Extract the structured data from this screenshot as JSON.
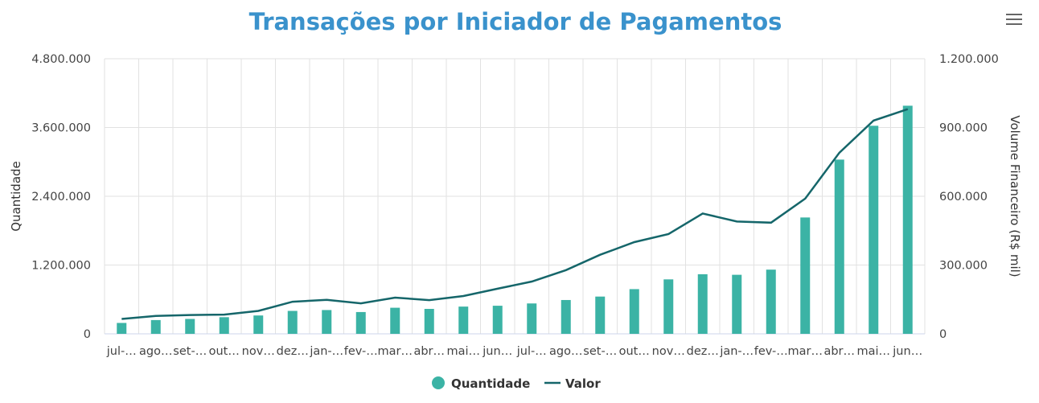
{
  "title": "Transações por Iniciador de Pagamentos",
  "menu_icon": "hamburger-menu-icon",
  "colors": {
    "title": "#3a92cc",
    "bars": "#3bb3a5",
    "line": "#15666a",
    "grid": "#e2e2e2"
  },
  "chart_data": {
    "type": "bar",
    "categories": [
      "jul-…",
      "ago…",
      "set-…",
      "out…",
      "nov…",
      "dez…",
      "jan-…",
      "fev-…",
      "mar…",
      "abr…",
      "mai…",
      "jun…",
      "jul-…",
      "ago…",
      "set-…",
      "out…",
      "nov…",
      "dez…",
      "jan-…",
      "fev-…",
      "mar…",
      "abr…",
      "mai…",
      "jun…"
    ],
    "series": [
      {
        "name": "Quantidade",
        "type": "bar",
        "axis": "left",
        "values": [
          190000,
          240000,
          260000,
          290000,
          320000,
          400000,
          415000,
          380000,
          455000,
          435000,
          475000,
          490000,
          530000,
          590000,
          650000,
          780000,
          950000,
          1040000,
          1030000,
          1120000,
          2030000,
          3040000,
          3630000,
          3980000
        ]
      },
      {
        "name": "Valor",
        "type": "line",
        "axis": "right",
        "values": [
          65000,
          78000,
          82000,
          84000,
          100000,
          140000,
          148000,
          133000,
          158000,
          147000,
          165000,
          197000,
          228000,
          278000,
          345000,
          400000,
          435000,
          525000,
          490000,
          485000,
          590000,
          790000,
          930000,
          980000
        ]
      }
    ],
    "y_left": {
      "label": "Quantidade",
      "ylim": [
        0,
        4800000
      ],
      "ticks": [
        "0",
        "1.200.000",
        "2.400.000",
        "3.600.000",
        "4.800.000"
      ],
      "tick_values": [
        0,
        1200000,
        2400000,
        3600000,
        4800000
      ]
    },
    "y_right": {
      "label": "Volume Financeiro (R$ mil)",
      "ylim": [
        0,
        1200000
      ],
      "ticks": [
        "0",
        "300.000",
        "600.000",
        "900.000",
        "1.200.000"
      ],
      "tick_values": [
        0,
        300000,
        600000,
        900000,
        1200000
      ]
    },
    "grid": true,
    "legend": "bottom-center",
    "legend_items": [
      "Quantidade",
      "Valor"
    ]
  }
}
